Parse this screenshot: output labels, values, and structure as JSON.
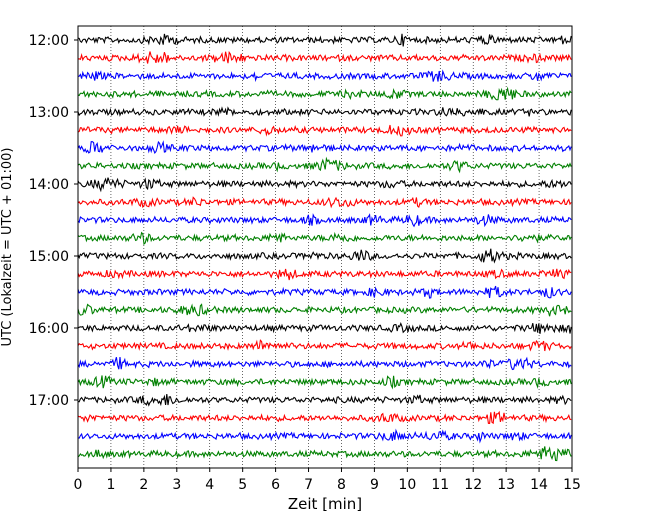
{
  "chart_data": {
    "type": "line",
    "title": "",
    "xlabel": "Zeit  [min]",
    "ylabel": "UTC (Lokalzeit = UTC + 01:00)",
    "x_range": [
      0,
      15
    ],
    "x_ticks": [
      "0",
      "1",
      "2",
      "3",
      "4",
      "5",
      "6",
      "7",
      "8",
      "9",
      "10",
      "11",
      "12",
      "13",
      "14",
      "15"
    ],
    "y_tick_labels": [
      "12:00",
      "13:00",
      "14:00",
      "15:00",
      "16:00",
      "17:00"
    ],
    "row_interval_minutes": 15,
    "first_row": "12:00",
    "row_count": 24,
    "grid": "vertical dotted at each minute",
    "legend": "none",
    "trace_colors": [
      "#000000",
      "#ff0000",
      "#0000ff",
      "#008000"
    ],
    "trace_pattern": "seismogram traces, 15 minutes per row, colors cycle black/red/blue/green"
  }
}
